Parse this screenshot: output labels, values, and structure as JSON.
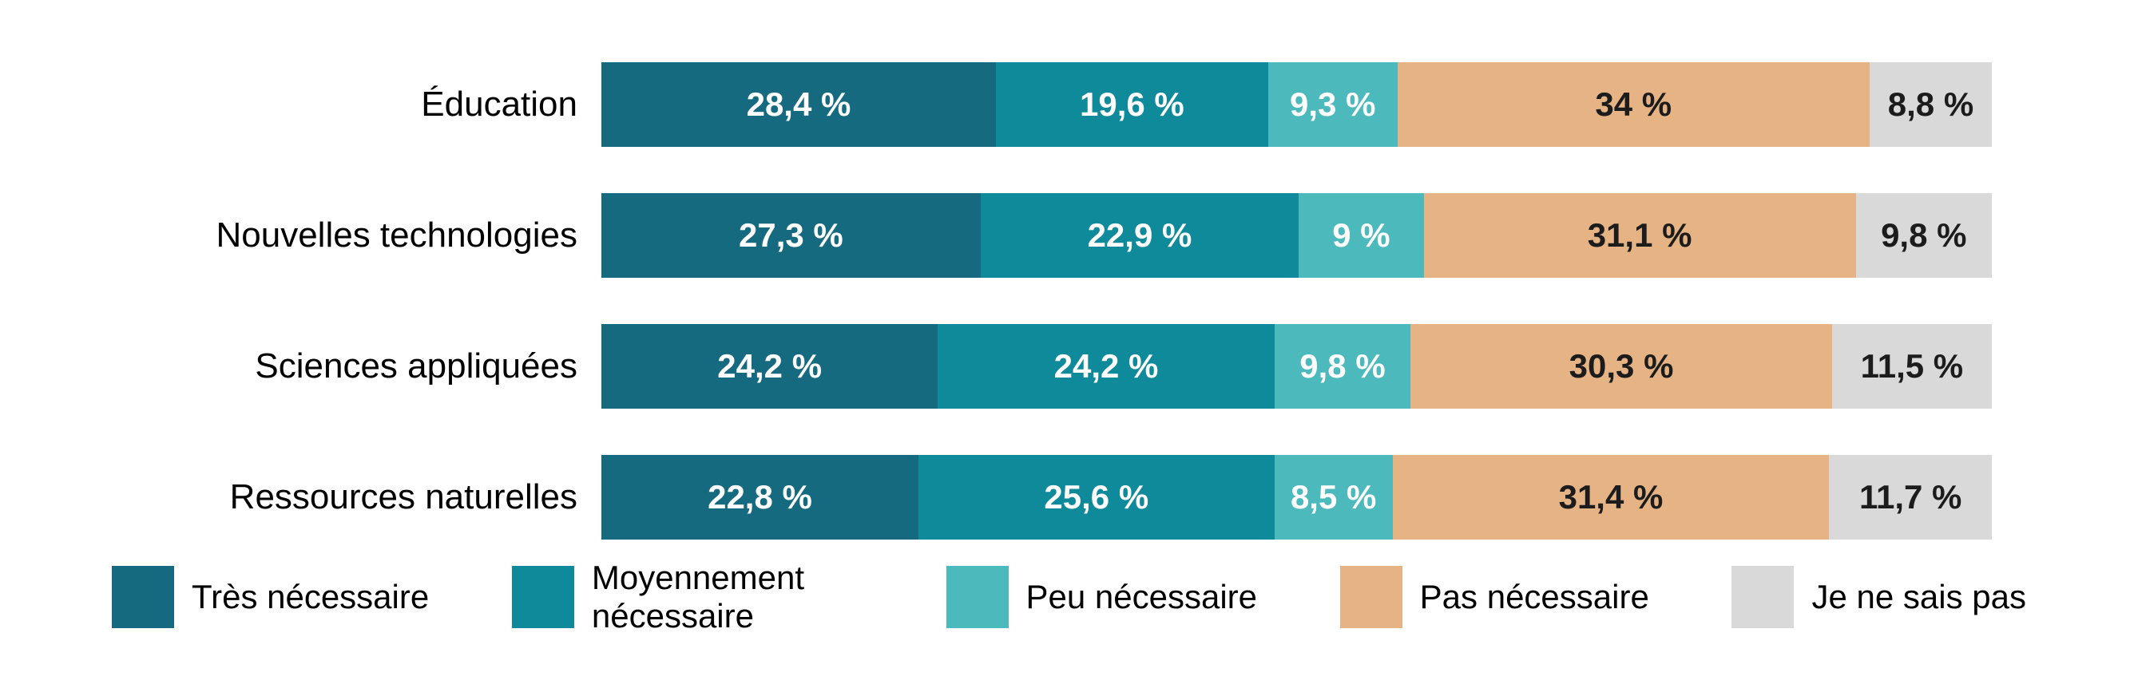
{
  "chart_data": {
    "type": "bar",
    "variant": "horizontal-stacked",
    "title": "",
    "xlabel": "",
    "ylabel": "",
    "xlim": [
      0,
      100
    ],
    "grid": false,
    "background_color": "#ffffff",
    "legend_position": "bottom",
    "categories": [
      "Éducation",
      "Nouvelles technologies",
      "Sciences appliquées",
      "Ressources naturelles"
    ],
    "series": [
      {
        "name": "Très nécessaire",
        "color": "#166a80",
        "label_color": "#ffffff",
        "values": [
          28.4,
          27.3,
          24.2,
          22.8
        ],
        "labels": [
          "28,4 %",
          "27,3 %",
          "24,2 %",
          "22,8 %"
        ]
      },
      {
        "name": "Moyennement nécessaire",
        "color": "#0f8a9b",
        "label_color": "#ffffff",
        "values": [
          19.6,
          22.9,
          24.2,
          25.6
        ],
        "labels": [
          "19,6 %",
          "22,9 %",
          "24,2 %",
          "25,6 %"
        ]
      },
      {
        "name": "Peu nécessaire",
        "color": "#4cb9bd",
        "label_color": "#ffffff",
        "values": [
          9.3,
          9.0,
          9.8,
          8.5
        ],
        "labels": [
          "9,3 %",
          "9 %",
          "9,8 %",
          "8,5 %"
        ]
      },
      {
        "name": "Pas nécessaire",
        "color": "#e6b484",
        "label_color": "#1c1c1c",
        "values": [
          34.0,
          31.1,
          30.3,
          31.4
        ],
        "labels": [
          "34 %",
          "31,1 %",
          "30,3 %",
          "31,4 %"
        ]
      },
      {
        "name": "Je ne sais pas",
        "color": "#d9d9d9",
        "label_color": "#1c1c1c",
        "values": [
          8.8,
          9.8,
          11.5,
          11.7
        ],
        "labels": [
          "8,8 %",
          "9,8 %",
          "11,5 %",
          "11,7 %"
        ]
      }
    ],
    "legend": [
      {
        "label": "Très nécessaire",
        "wrap": false
      },
      {
        "label": "Moyennement nécessaire",
        "wrap": true
      },
      {
        "label": "Peu nécessaire",
        "wrap": false
      },
      {
        "label": "Pas nécessaire",
        "wrap": false
      },
      {
        "label": "Je ne sais pas",
        "wrap": false
      }
    ]
  }
}
